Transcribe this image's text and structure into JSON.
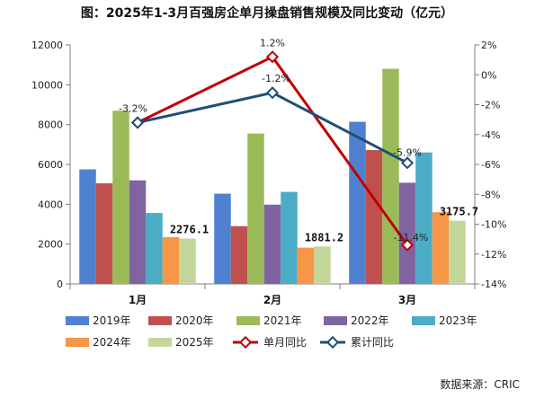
{
  "chart_data": {
    "type": "bar",
    "title": "图：2025年1-3月百强房企单月操盘销售规模及同比变动（亿元）",
    "categories": [
      "1月",
      "2月",
      "3月"
    ],
    "ylim_left": [
      0,
      12000
    ],
    "yticks_left": [
      0,
      2000,
      4000,
      6000,
      8000,
      10000,
      12000
    ],
    "ylim_right": [
      -14,
      2
    ],
    "yticks_right": [
      "2%",
      "0%",
      "-2%",
      "-4%",
      "-6%",
      "-8%",
      "-10%",
      "-12%",
      "-14%"
    ],
    "series": [
      {
        "name": "2019年",
        "color": "#4f81d0",
        "values": [
          5750,
          4530,
          8140
        ]
      },
      {
        "name": "2020年",
        "color": "#c0504d",
        "values": [
          5050,
          2900,
          6720
        ]
      },
      {
        "name": "2021年",
        "color": "#9bbb59",
        "values": [
          8700,
          7550,
          10800
        ]
      },
      {
        "name": "2022年",
        "color": "#8064a2",
        "values": [
          5200,
          3980,
          5080
        ]
      },
      {
        "name": "2023年",
        "color": "#4bacc6",
        "values": [
          3560,
          4620,
          6600
        ]
      },
      {
        "name": "2024年",
        "color": "#f79646",
        "values": [
          2350,
          1820,
          3600
        ]
      },
      {
        "name": "2025年",
        "color": "#c4d79b",
        "values": [
          2276.1,
          1881.2,
          3175.7
        ]
      }
    ],
    "bar_labels": [
      "2276.1",
      "1881.2",
      "3175.7"
    ],
    "lines": [
      {
        "name": "单月同比",
        "color": "#c00000",
        "values": [
          -3.2,
          1.2,
          -11.4
        ],
        "labels": [
          "",
          "1.2%",
          "-11.4%"
        ]
      },
      {
        "name": "累计同比",
        "color": "#1f4e79",
        "values": [
          -3.2,
          -1.2,
          -5.9
        ],
        "labels": [
          "-3.2%",
          "-1.2%",
          "-5.9%"
        ]
      }
    ],
    "legend_position": "bottom"
  },
  "source": "数据来源：CRIC"
}
